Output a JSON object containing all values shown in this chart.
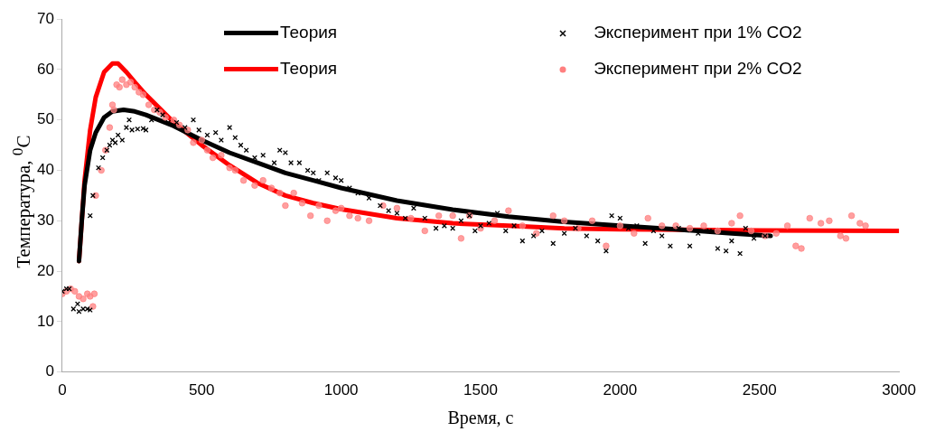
{
  "chart_data": {
    "type": "scatter",
    "xlabel": "Время, с",
    "ylabel": "Температура, $^{0}$C",
    "xlim": [
      0,
      3000
    ],
    "ylim": [
      0,
      70
    ],
    "xticks": [
      0,
      500,
      1000,
      1500,
      2000,
      2500,
      3000
    ],
    "yticks": [
      0,
      10,
      20,
      30,
      40,
      50,
      60,
      70
    ],
    "grid": false,
    "legend": "top",
    "series": [
      {
        "name": "Теория",
        "type": "line",
        "marker": "none",
        "line_style": "solid",
        "color": "#000000",
        "x": [
          60,
          70,
          80,
          100,
          120,
          150,
          180,
          220,
          260,
          300,
          400,
          500,
          600,
          700,
          800,
          900,
          1000,
          1200,
          1400,
          1600,
          1800,
          2000,
          2200,
          2400,
          2540
        ],
        "values": [
          22,
          30,
          37,
          44,
          47.5,
          50.5,
          51.7,
          52,
          51.7,
          51,
          48.8,
          46,
          43.5,
          41.5,
          39.5,
          38,
          36.5,
          34,
          32.2,
          30.8,
          29.8,
          29,
          28.3,
          27.5,
          27
        ]
      },
      {
        "name": "Теория",
        "type": "line",
        "marker": "none",
        "line_style": "solid",
        "color": "#ff0000",
        "x": [
          60,
          70,
          80,
          100,
          120,
          150,
          180,
          200,
          230,
          260,
          300,
          400,
          500,
          600,
          700,
          800,
          900,
          1000,
          1200,
          1400,
          1600,
          1800,
          2000,
          2500,
          3000
        ],
        "values": [
          22,
          30,
          38,
          48,
          54.5,
          59.5,
          61.2,
          61.2,
          59.5,
          57.5,
          55,
          49.5,
          45,
          41,
          37.5,
          35,
          33.5,
          32.3,
          30.5,
          29.5,
          29,
          28.5,
          28.3,
          28.1,
          28
        ]
      },
      {
        "name": "Эксперимент при 1% CO2",
        "type": "scatter",
        "marker": "cross",
        "color": "#000000",
        "x": [
          0,
          15,
          25,
          40,
          55,
          60,
          75,
          90,
          100,
          100,
          110,
          130,
          145,
          160,
          170,
          180,
          190,
          200,
          215,
          230,
          240,
          250,
          270,
          290,
          300,
          320,
          340,
          360,
          380,
          410,
          440,
          470,
          490,
          520,
          550,
          570,
          600,
          620,
          640,
          660,
          690,
          720,
          760,
          780,
          800,
          820,
          850,
          880,
          900,
          920,
          950,
          980,
          1000,
          1030,
          1060,
          1100,
          1140,
          1170,
          1200,
          1230,
          1260,
          1300,
          1340,
          1370,
          1400,
          1430,
          1460,
          1480,
          1500,
          1530,
          1560,
          1590,
          1620,
          1650,
          1690,
          1720,
          1760,
          1800,
          1840,
          1880,
          1920,
          1950,
          1970,
          2000,
          2030,
          2060,
          2090,
          2120,
          2150,
          2180,
          2210,
          2250,
          2280,
          2320,
          2350,
          2380,
          2400,
          2430,
          2450,
          2480,
          2520
        ],
        "values": [
          16,
          16.5,
          16.5,
          12.5,
          13.5,
          12,
          12.5,
          12.5,
          12.3,
          31,
          35,
          40.5,
          42.5,
          44,
          45,
          46,
          45.5,
          47,
          46,
          48.5,
          50,
          48,
          48.2,
          48.3,
          48,
          50,
          52,
          51,
          49.5,
          49.5,
          48.5,
          50,
          48,
          47,
          47.5,
          46,
          48.5,
          46.5,
          45,
          44,
          42.5,
          43,
          41.5,
          44,
          43.5,
          41.5,
          41.5,
          40,
          39.5,
          38,
          39.5,
          38.5,
          38,
          36.5,
          35.5,
          34.5,
          33,
          32,
          31.5,
          30.5,
          32.5,
          30.5,
          28.5,
          29,
          28.5,
          30,
          31,
          28,
          29,
          29.5,
          31.5,
          28,
          29,
          26,
          27,
          28,
          25.5,
          27.5,
          28.5,
          27,
          26,
          24,
          31,
          30.5,
          28.5,
          29,
          25.5,
          28,
          27,
          25,
          28.5,
          25,
          27.5,
          28,
          24.5,
          24,
          26,
          23.5,
          28.5,
          26.5,
          27
        ]
      },
      {
        "name": "Эксперимент при 2% CO2",
        "type": "scatter",
        "marker": "circle",
        "color": "#ff7f7f",
        "x": [
          0,
          15,
          30,
          45,
          60,
          75,
          90,
          100,
          110,
          115,
          120,
          140,
          155,
          170,
          180,
          185,
          195,
          205,
          215,
          230,
          245,
          260,
          275,
          290,
          310,
          330,
          350,
          370,
          400,
          420,
          450,
          470,
          500,
          520,
          540,
          570,
          600,
          620,
          650,
          690,
          720,
          750,
          780,
          800,
          830,
          860,
          890,
          920,
          950,
          980,
          1000,
          1030,
          1060,
          1100,
          1150,
          1200,
          1250,
          1300,
          1350,
          1400,
          1430,
          1460,
          1500,
          1550,
          1600,
          1650,
          1700,
          1760,
          1800,
          1850,
          1900,
          1950,
          2000,
          2050,
          2100,
          2150,
          2200,
          2250,
          2300,
          2350,
          2400,
          2430,
          2470,
          2520,
          2560,
          2600,
          2630,
          2650,
          2680,
          2720,
          2750,
          2790,
          2810,
          2830,
          2860,
          2880
        ],
        "values": [
          15.5,
          16,
          16.5,
          16,
          15,
          14.5,
          15.5,
          15,
          13,
          15.5,
          35,
          40,
          44,
          48.5,
          53,
          52,
          57,
          56.5,
          58,
          57,
          57.5,
          56.5,
          55.5,
          55,
          53,
          52,
          51.5,
          50.5,
          50,
          49,
          48,
          45.5,
          46,
          44,
          42.5,
          43,
          40.5,
          40,
          38,
          37,
          38,
          36.5,
          35.5,
          33,
          35.5,
          33.5,
          31,
          33,
          30,
          32,
          32.5,
          31,
          30.5,
          30,
          33,
          32.5,
          30.5,
          28,
          31,
          31,
          26.5,
          31,
          28.5,
          30,
          32,
          29,
          27.5,
          31,
          30,
          28.5,
          30,
          25,
          29,
          27.5,
          30.5,
          29,
          29,
          28.5,
          29,
          28,
          29.5,
          31,
          28,
          27,
          27.5,
          29,
          25,
          24.5,
          30.5,
          29.5,
          30,
          27,
          26.5,
          31,
          29.5,
          29
        ]
      }
    ]
  }
}
